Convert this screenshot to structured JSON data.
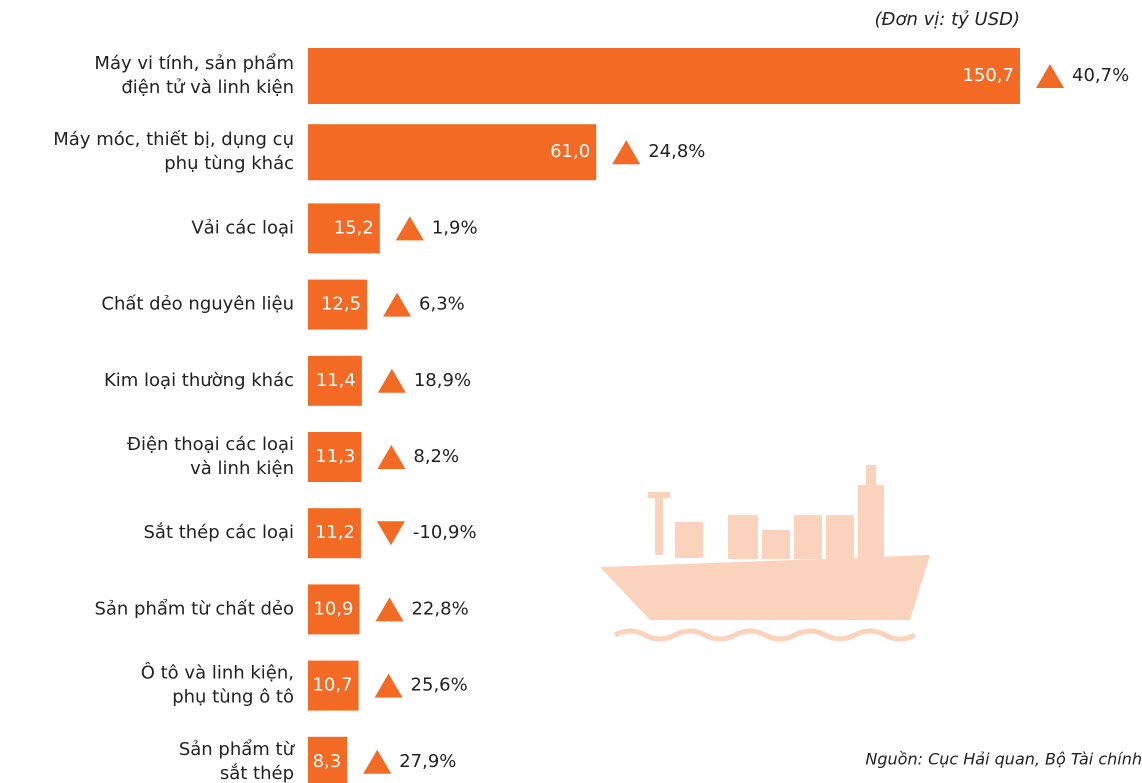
{
  "chart_data": {
    "type": "bar",
    "orientation": "horizontal",
    "unit_note": "(Đơn vị: tỷ USD)",
    "source": "Nguồn: Cục Hải quan, Bộ Tài chính",
    "categories": [
      [
        "Máy vi tính, sản phẩm",
        "điện tử và linh kiện"
      ],
      [
        "Máy móc, thiết bị, dụng cụ",
        "phụ tùng khác"
      ],
      [
        "Vải các loại"
      ],
      [
        "Chất dẻo nguyên liệu"
      ],
      [
        "Kim loại thường khác"
      ],
      [
        "Điện thoại các loại",
        "và linh kiện"
      ],
      [
        "Sắt thép các loại"
      ],
      [
        "Sản phẩm từ chất dẻo"
      ],
      [
        "Ô tô và linh kiện,",
        "phụ tùng ô tô"
      ],
      [
        "Sản phẩm từ",
        "sắt thép"
      ]
    ],
    "values": [
      150.7,
      61.0,
      15.2,
      12.5,
      11.4,
      11.3,
      11.2,
      10.9,
      10.7,
      8.3
    ],
    "value_labels": [
      "150,7",
      "61,0",
      "15,2",
      "12,5",
      "11,4",
      "11,3",
      "11,2",
      "10,9",
      "10,7",
      "8,3"
    ],
    "changes": [
      40.7,
      24.8,
      1.9,
      6.3,
      18.9,
      8.2,
      -10.9,
      22.8,
      25.6,
      27.9
    ],
    "change_labels": [
      "40,7%",
      "24,8%",
      "1,9%",
      "6,3%",
      "18,9%",
      "8,2%",
      "-10,9%",
      "22,8%",
      "25,6%",
      "27,9%"
    ],
    "color": "#f26a24"
  }
}
